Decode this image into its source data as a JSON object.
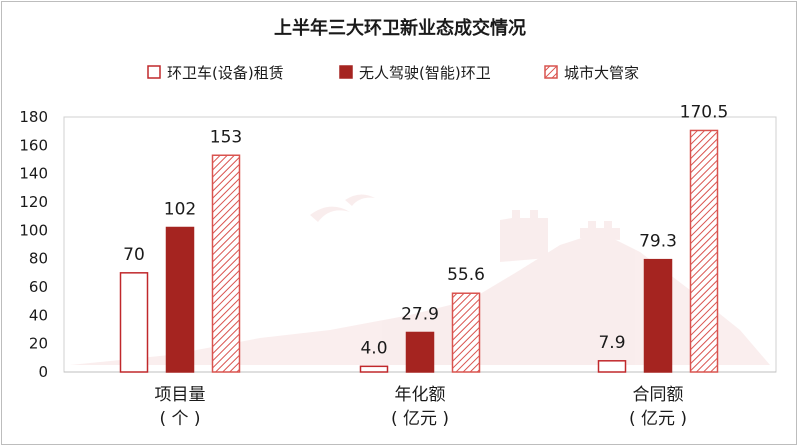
{
  "chart_data": {
    "type": "bar",
    "title": "上半年三大环卫新业态成交情况",
    "categories": [
      "项目量",
      "年化额",
      "合同额"
    ],
    "category_units": [
      "( 个 )",
      "( 亿元 )",
      "( 亿元 )"
    ],
    "series": [
      {
        "name": "环卫车(设备)租赁",
        "values": [
          70,
          4.0,
          7.9
        ],
        "labels": [
          "70",
          "4.0",
          "7.9"
        ],
        "style": "outline",
        "color": "#c0282b"
      },
      {
        "name": "无人驾驶(智能)环卫",
        "values": [
          102,
          27.9,
          79.3
        ],
        "labels": [
          "102",
          "27.9",
          "79.3"
        ],
        "style": "solid",
        "color": "#a52420"
      },
      {
        "name": "城市大管家",
        "values": [
          153,
          55.6,
          170.5
        ],
        "labels": [
          "153",
          "55.6",
          "170.5"
        ],
        "style": "hatched",
        "color": "#d9534f"
      }
    ],
    "ylim": [
      0,
      180
    ],
    "yticks": [
      "0",
      "20",
      "40",
      "60",
      "80",
      "100",
      "120",
      "140",
      "160",
      "180"
    ],
    "legend_position": "top",
    "grid": false
  }
}
